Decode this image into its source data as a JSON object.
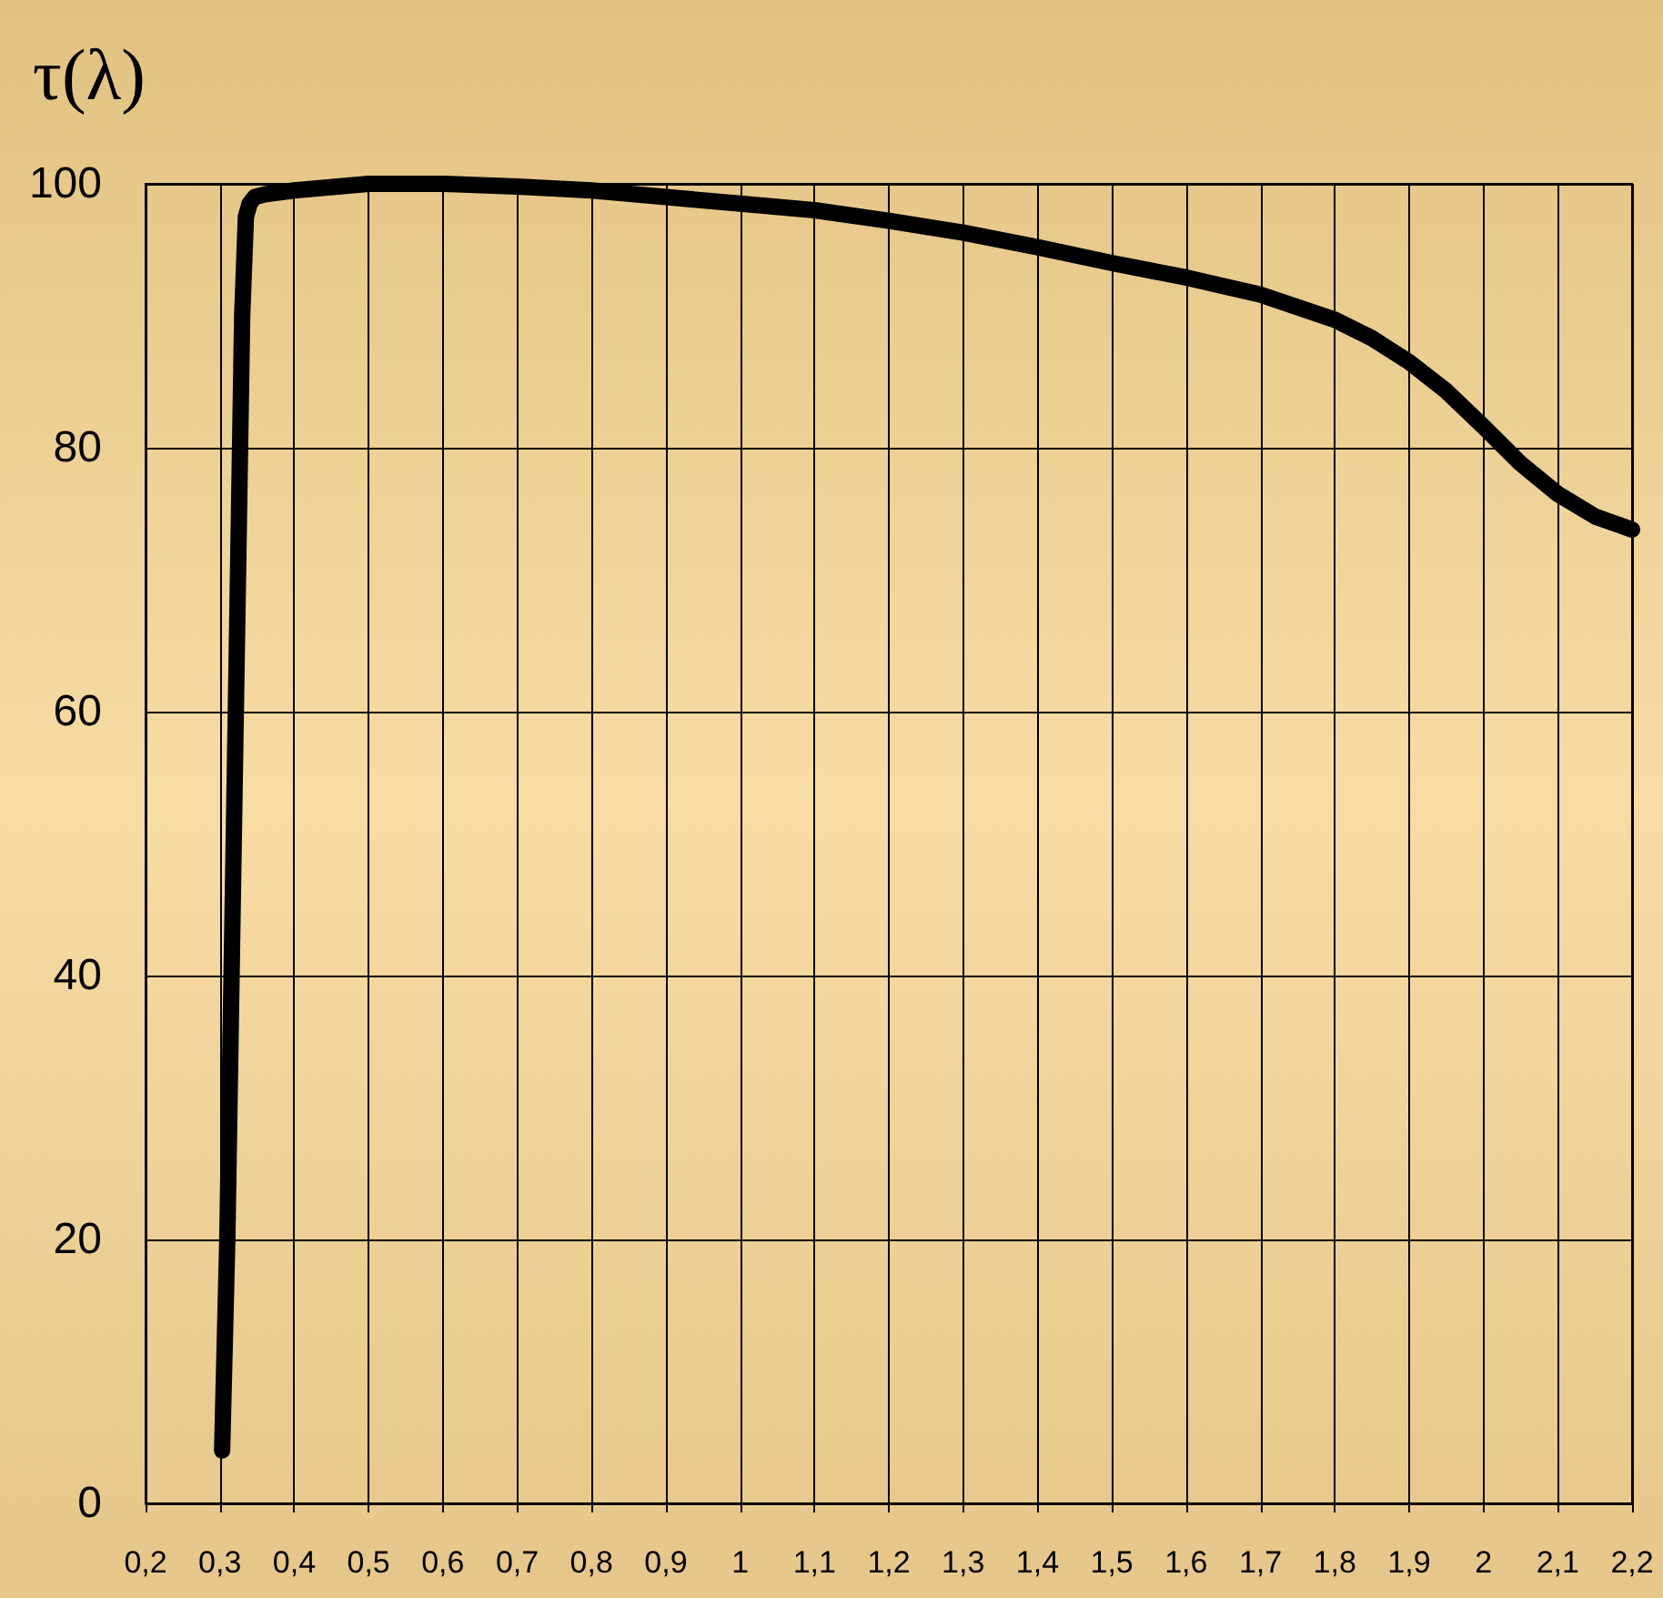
{
  "chart_data": {
    "type": "line",
    "ylabel": "τ(λ)",
    "x": [
      0.303,
      0.31,
      0.32,
      0.33,
      0.335,
      0.34,
      0.347,
      0.36,
      0.4,
      0.5,
      0.6,
      0.7,
      0.8,
      0.9,
      1.0,
      1.1,
      1.2,
      1.3,
      1.4,
      1.5,
      1.6,
      1.7,
      1.8,
      1.85,
      1.9,
      1.95,
      2.0,
      2.05,
      2.1,
      2.15,
      2.2
    ],
    "series": [
      {
        "color": "#000000",
        "values": [
          4,
          20,
          55,
          90,
          97.5,
          98.5,
          99,
          99.2,
          99.5,
          100,
          100,
          99.8,
          99.5,
          99,
          98.5,
          98,
          97.2,
          96.3,
          95.2,
          94,
          92.9,
          91.6,
          89.7,
          88.3,
          86.5,
          84.3,
          81.6,
          78.8,
          76.5,
          74.8,
          73.8
        ]
      }
    ],
    "xlim": [
      0.2,
      2.2
    ],
    "xticks": [
      {
        "value": 0.2,
        "label": "0,2"
      },
      {
        "value": 0.3,
        "label": "0,3"
      },
      {
        "value": 0.4,
        "label": "0,4"
      },
      {
        "value": 0.5,
        "label": "0,5"
      },
      {
        "value": 0.6,
        "label": "0,6"
      },
      {
        "value": 0.7,
        "label": "0,7"
      },
      {
        "value": 0.8,
        "label": "0,8"
      },
      {
        "value": 0.9,
        "label": "0,9"
      },
      1,
      {
        "value": 1.1,
        "label": "1,1"
      },
      {
        "value": 1.2,
        "label": "1,2"
      },
      {
        "value": 1.3,
        "label": "1,3"
      },
      {
        "value": 1.4,
        "label": "1,4"
      },
      {
        "value": 1.5,
        "label": "1,5"
      },
      {
        "value": 1.6,
        "label": "1,6"
      },
      {
        "value": 1.7,
        "label": "1,7"
      },
      {
        "value": 1.8,
        "label": "1,8"
      },
      {
        "value": 1.9,
        "label": "1,9"
      },
      2,
      {
        "value": 2.1,
        "label": "2,1"
      },
      {
        "value": 2.2,
        "label": "2,2"
      }
    ],
    "ylim": [
      0,
      100
    ],
    "yticks": [
      0,
      20,
      40,
      60,
      80,
      100
    ],
    "grid": true,
    "marker": "none",
    "line_style": "solid"
  }
}
